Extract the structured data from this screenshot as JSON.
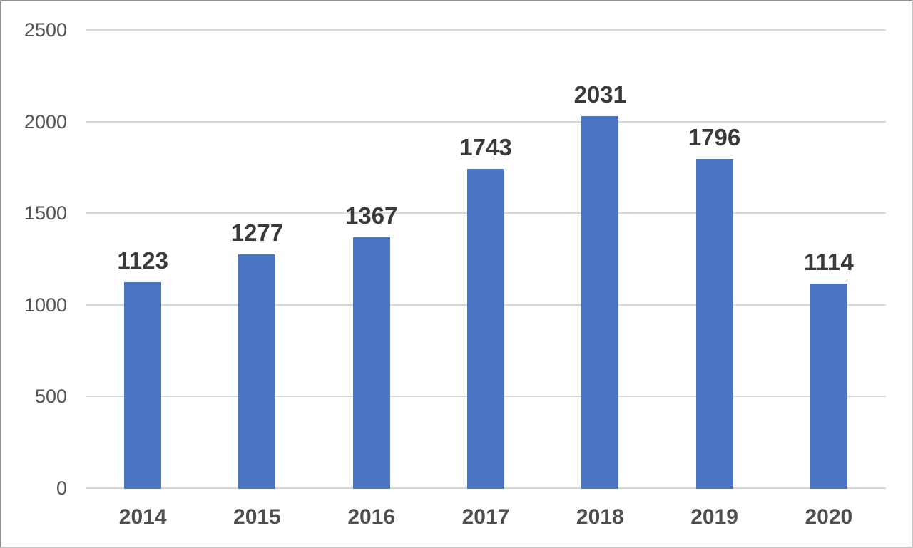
{
  "chart_data": {
    "type": "bar",
    "title": "",
    "xlabel": "",
    "ylabel": "",
    "categories": [
      "2014",
      "2015",
      "2016",
      "2017",
      "2018",
      "2019",
      "2020"
    ],
    "values": [
      1123,
      1277,
      1367,
      1743,
      2031,
      1796,
      1114
    ],
    "data_labels": [
      "1123",
      "1277",
      "1367",
      "1743",
      "2031",
      "1796",
      "1114"
    ],
    "data_labels_shown": true,
    "ylim": [
      0,
      2500
    ],
    "yticks": [
      0,
      500,
      1000,
      1500,
      2000,
      2500
    ],
    "ytick_labels": [
      "0",
      "500",
      "1000",
      "1500",
      "2000",
      "2500"
    ],
    "grid": true,
    "legend": "none",
    "colors": {
      "bar": "#4a75c4",
      "gridline": "#d8d8d8",
      "y_tick_text": "#545454",
      "x_tick_text": "#4e4e4e",
      "data_label_text": "#3a3a3a",
      "background": "#ffffff",
      "frame_border": "#8f8f8f"
    }
  }
}
